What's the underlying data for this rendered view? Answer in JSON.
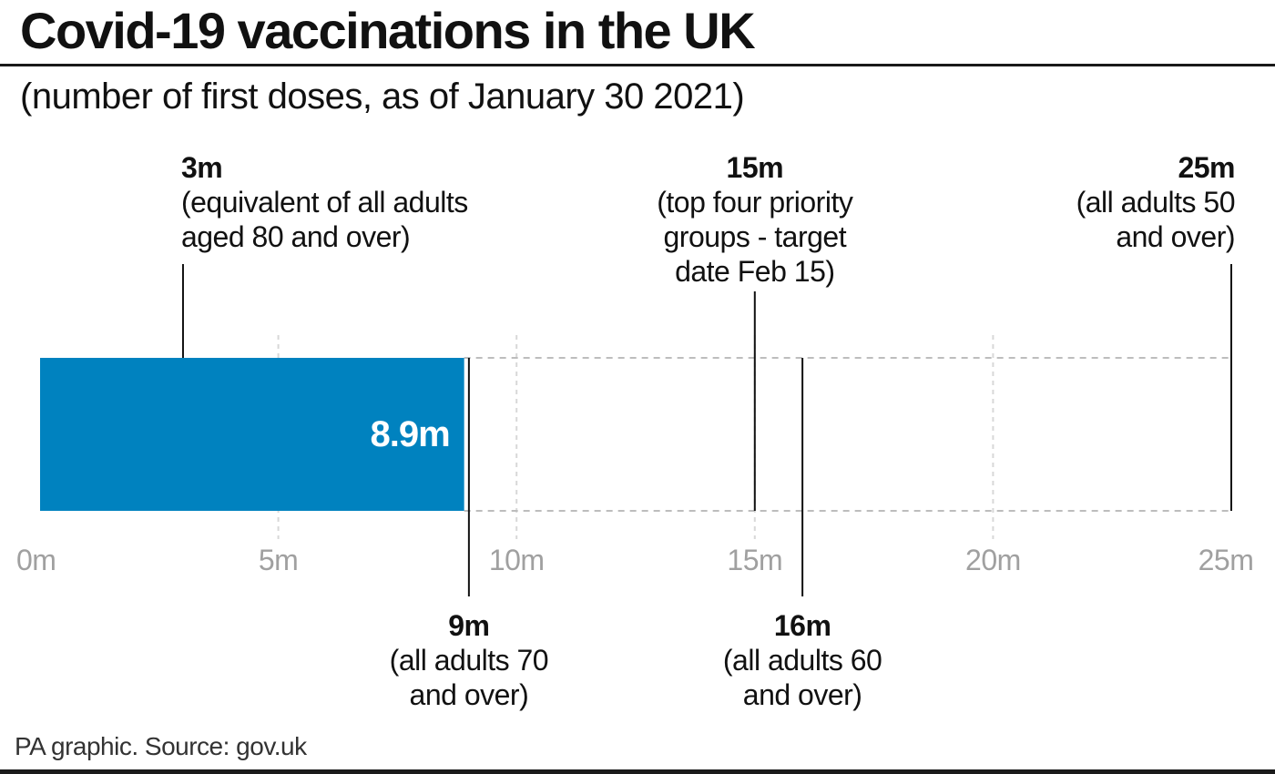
{
  "header": {
    "title": "Covid-19 vaccinations in the UK",
    "subtitle": "(number of first doses, as of January 30 2021)"
  },
  "footer": {
    "source": "PA graphic. Source: gov.uk"
  },
  "colors": {
    "bar": "#0082bf",
    "text": "#111111",
    "axis_labels": "#a0a0a0",
    "grid": "#d8d8d8"
  },
  "chart_data": {
    "type": "bar",
    "orientation": "horizontal",
    "title": "Covid-19 vaccinations in the UK",
    "subtitle": "(number of first doses, as of January 30 2021)",
    "xlim": [
      0,
      25
    ],
    "x_ticks": [
      0,
      5,
      10,
      15,
      20,
      25
    ],
    "x_tick_labels": [
      "0m",
      "5m",
      "10m",
      "15m",
      "20m",
      "25m"
    ],
    "grid": true,
    "bar": {
      "value": 8.9,
      "label": "8.9m"
    },
    "markers": [
      {
        "value": 3,
        "label": "3m",
        "lines": [
          "(equivalent of all adults",
          "aged 80 and over)"
        ],
        "side": "top",
        "align": "start"
      },
      {
        "value": 15,
        "label": "15m",
        "lines": [
          "(top four priority",
          "groups - target",
          "date Feb 15)"
        ],
        "side": "top",
        "align": "middle"
      },
      {
        "value": 25,
        "label": "25m",
        "lines": [
          "(all adults 50",
          "and over)"
        ],
        "side": "top",
        "align": "end"
      },
      {
        "value": 9,
        "label": "9m",
        "lines": [
          "(all adults 70",
          "and over)"
        ],
        "side": "bottom",
        "align": "middle"
      },
      {
        "value": 16,
        "label": "16m",
        "lines": [
          "(all adults 60",
          "and over)"
        ],
        "side": "bottom",
        "align": "middle"
      }
    ]
  }
}
